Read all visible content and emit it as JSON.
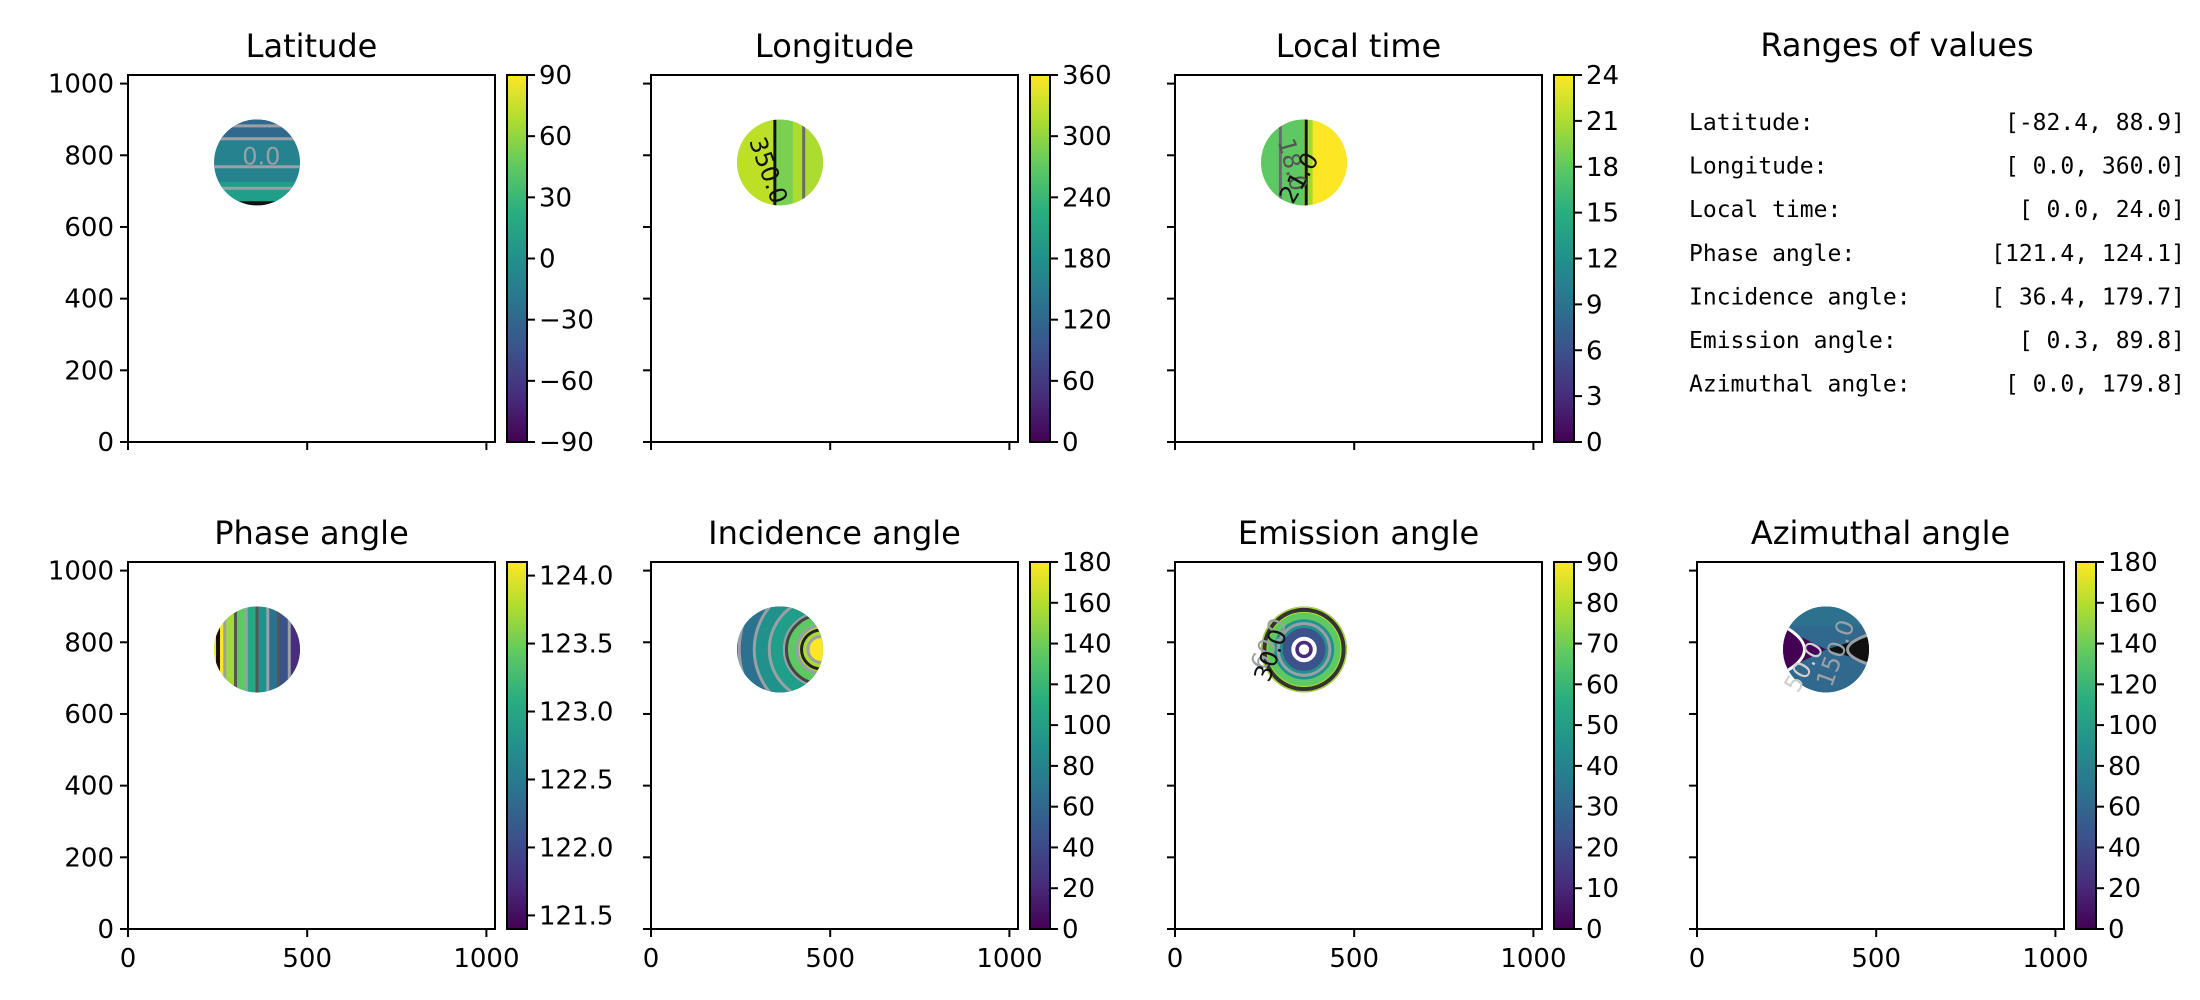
{
  "chart_data": [
    {
      "type": "heatmap",
      "title": "Latitude",
      "xlim": [
        0,
        1024
      ],
      "ylim": [
        0,
        1024
      ],
      "xticks": [
        "0",
        "500",
        "1000"
      ],
      "yticks": [
        "0",
        "200",
        "400",
        "600",
        "800",
        "1000"
      ],
      "disk": {
        "cx": 360,
        "cy": 780,
        "r": 120
      },
      "cbar": {
        "min": -90,
        "max": 90,
        "ticks": [
          "90",
          "60",
          "30",
          "0",
          "−30",
          "−60",
          "−90"
        ]
      },
      "contour_labels": [
        "0.0"
      ],
      "colors": [
        "#31688e",
        "#26828e",
        "#1f9e89"
      ]
    },
    {
      "type": "heatmap",
      "title": "Longitude",
      "xlim": [
        0,
        1024
      ],
      "ylim": [
        0,
        1024
      ],
      "xticks": [
        "0",
        "500",
        "1000"
      ],
      "yticks": [
        "0",
        "200",
        "400",
        "600",
        "800",
        "1000"
      ],
      "disk": {
        "cx": 360,
        "cy": 780,
        "r": 120
      },
      "cbar": {
        "min": 0,
        "max": 360,
        "ticks": [
          "360",
          "300",
          "240",
          "180",
          "120",
          "60",
          "0"
        ]
      },
      "contour_labels": [
        "350.0"
      ],
      "colors": [
        "#bddf26",
        "#7ad151",
        "#addc30"
      ]
    },
    {
      "type": "heatmap",
      "title": "Local time",
      "xlim": [
        0,
        1024
      ],
      "ylim": [
        0,
        1024
      ],
      "xticks": [
        "0",
        "500",
        "1000"
      ],
      "yticks": [
        "0",
        "200",
        "400",
        "600",
        "800",
        "1000"
      ],
      "disk": {
        "cx": 360,
        "cy": 780,
        "r": 120
      },
      "cbar": {
        "min": 0,
        "max": 24,
        "ticks": [
          "24",
          "21",
          "18",
          "15",
          "12",
          "9",
          "6",
          "3",
          "0"
        ]
      },
      "contour_labels": [
        "18.0",
        "21.0"
      ],
      "colors": [
        "#5ec962",
        "#a0da39",
        "#fde725"
      ]
    },
    {
      "type": "heatmap",
      "title": "Phase angle",
      "xlim": [
        0,
        1024
      ],
      "ylim": [
        0,
        1024
      ],
      "xticks": [
        "0",
        "500",
        "1000"
      ],
      "yticks": [
        "0",
        "200",
        "400",
        "600",
        "800",
        "1000"
      ],
      "disk": {
        "cx": 360,
        "cy": 780,
        "r": 120
      },
      "cbar": {
        "min": 121.4,
        "max": 124.1,
        "ticks": [
          "124.0",
          "123.5",
          "123.0",
          "122.5",
          "122.0",
          "121.5"
        ]
      },
      "contour_labels": [],
      "colors": [
        "#a0da39",
        "#22a884",
        "#3b528b"
      ]
    },
    {
      "type": "heatmap",
      "title": "Incidence angle",
      "xlim": [
        0,
        1024
      ],
      "ylim": [
        0,
        1024
      ],
      "xticks": [
        "0",
        "500",
        "1000"
      ],
      "yticks": [
        "0",
        "200",
        "400",
        "600",
        "800",
        "1000"
      ],
      "disk": {
        "cx": 360,
        "cy": 780,
        "r": 120
      },
      "cbar": {
        "min": 0,
        "max": 180,
        "ticks": [
          "180",
          "160",
          "140",
          "120",
          "100",
          "80",
          "60",
          "40",
          "20",
          "0"
        ]
      },
      "contour_labels": [],
      "colors": [
        "#31688e",
        "#1f9e89",
        "#b5de2b"
      ]
    },
    {
      "type": "heatmap",
      "title": "Emission angle",
      "xlim": [
        0,
        1024
      ],
      "ylim": [
        0,
        1024
      ],
      "xticks": [
        "0",
        "500",
        "1000"
      ],
      "yticks": [
        "0",
        "200",
        "400",
        "600",
        "800",
        "1000"
      ],
      "disk": {
        "cx": 360,
        "cy": 780,
        "r": 120
      },
      "cbar": {
        "min": 0,
        "max": 90,
        "ticks": [
          "90",
          "80",
          "70",
          "60",
          "50",
          "40",
          "30",
          "20",
          "10",
          "0"
        ]
      },
      "contour_labels": [
        "60.0",
        "30.0"
      ],
      "colors": [
        "#21918c",
        "#3e4a89",
        "#440154"
      ]
    },
    {
      "type": "heatmap",
      "title": "Azimuthal angle",
      "xlim": [
        0,
        1024
      ],
      "ylim": [
        0,
        1024
      ],
      "xticks": [
        "0",
        "500",
        "1000"
      ],
      "yticks": [
        "0",
        "200",
        "400",
        "600",
        "800",
        "1000"
      ],
      "disk": {
        "cx": 360,
        "cy": 780,
        "r": 120
      },
      "cbar": {
        "min": 0,
        "max": 180,
        "ticks": [
          "180",
          "160",
          "140",
          "120",
          "100",
          "80",
          "60",
          "40",
          "20",
          "0"
        ]
      },
      "contour_labels": [
        "50.0",
        "150.0"
      ],
      "colors": [
        "#31688e",
        "#21918c",
        "#440154"
      ]
    }
  ],
  "ranges": {
    "title": "Ranges of values",
    "rows": [
      {
        "label": "Latitude:",
        "value": "[-82.4,  88.9]"
      },
      {
        "label": "Longitude:",
        "value": "[  0.0, 360.0]"
      },
      {
        "label": "Local time:",
        "value": "[  0.0,  24.0]"
      },
      {
        "label": "Phase angle:",
        "value": "[121.4, 124.1]"
      },
      {
        "label": "Incidence angle:",
        "value": "[ 36.4, 179.7]"
      },
      {
        "label": "Emission angle:",
        "value": "[  0.3,  89.8]"
      },
      {
        "label": "Azimuthal angle:",
        "value": "[  0.0, 179.8]"
      }
    ]
  },
  "colormap": "viridis"
}
